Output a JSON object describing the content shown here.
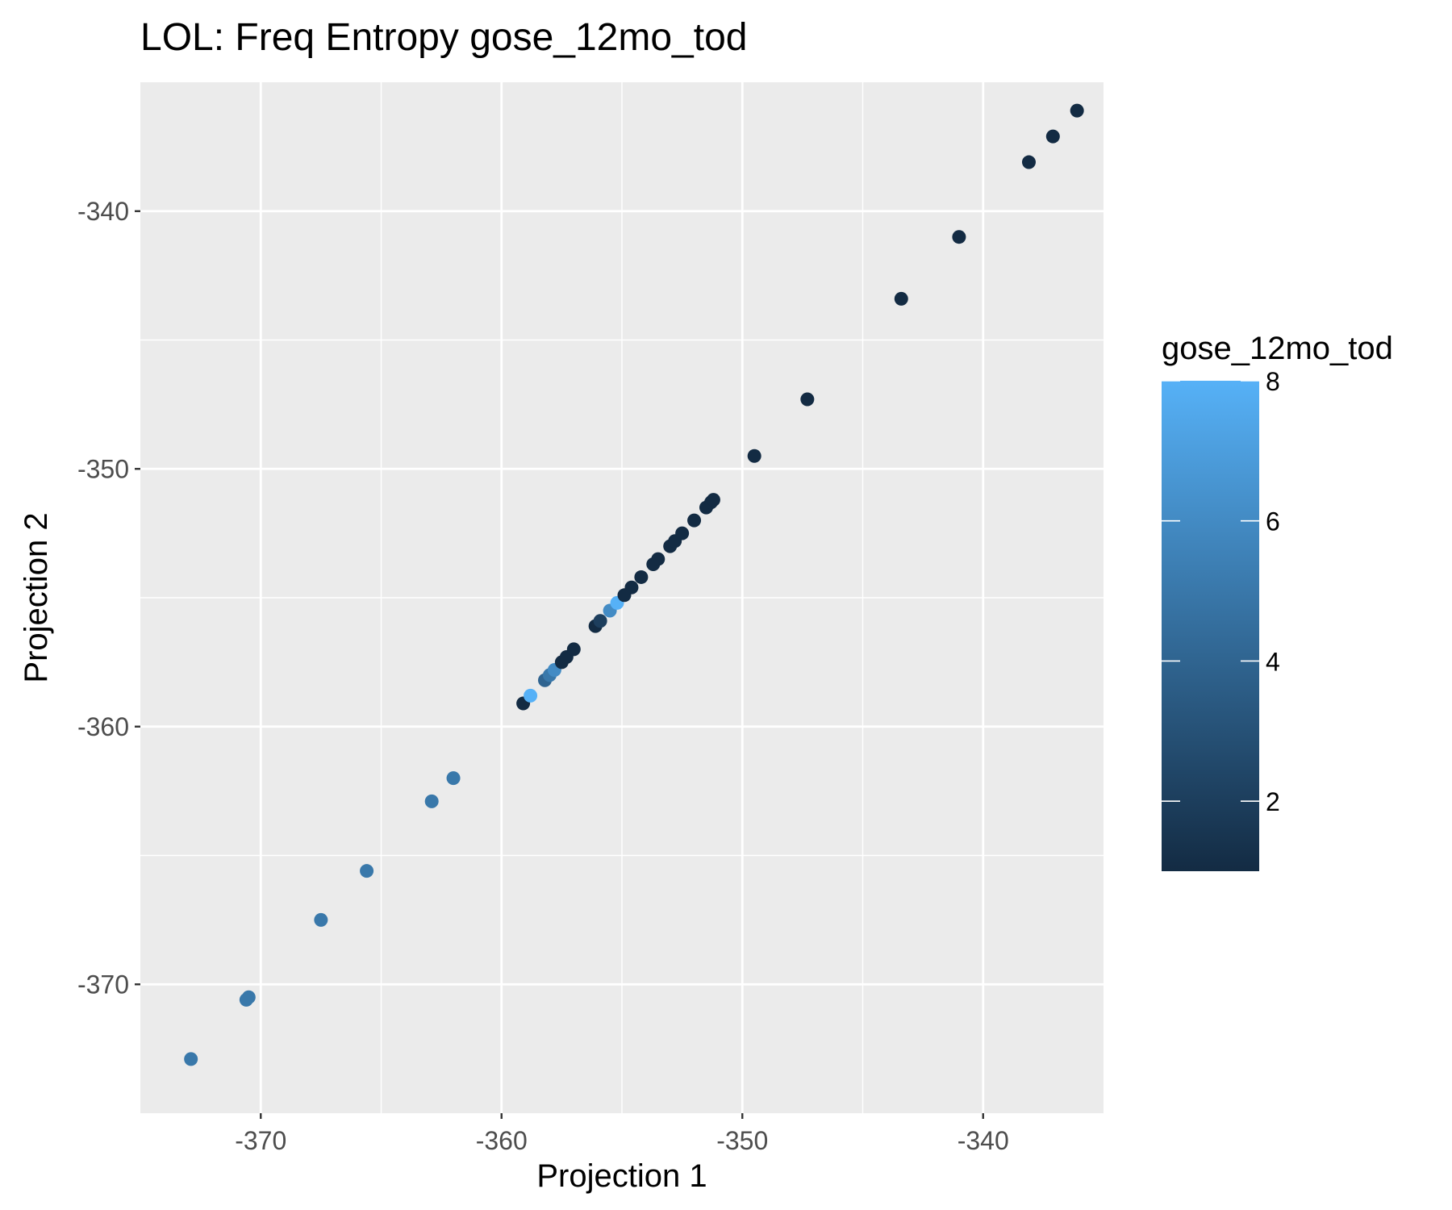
{
  "chart_data": {
    "type": "scatter",
    "title": "LOL: Freq Entropy gose_12mo_tod",
    "xlabel": "Projection 1",
    "ylabel": "Projection 2",
    "xlim": [
      -375,
      -335
    ],
    "ylim": [
      -375,
      -335
    ],
    "x_ticks": [
      -370,
      -360,
      -350,
      -340
    ],
    "y_ticks": [
      -370,
      -360,
      -350,
      -340
    ],
    "x_tick_labels": [
      "-370",
      "-360",
      "-350",
      "-340"
    ],
    "y_tick_labels": [
      "-370",
      "-360",
      "-350",
      "-340"
    ],
    "grid": true,
    "legend": {
      "title": "gose_12mo_tod",
      "placement": "right",
      "type": "colorbar",
      "range": [
        1,
        8
      ],
      "ticks": [
        2,
        4,
        6,
        8
      ],
      "tick_labels": [
        "2",
        "4",
        "6",
        "8"
      ],
      "low_color": "#132B43",
      "high_color": "#56B1F7"
    },
    "series": [
      {
        "points": [
          {
            "x": -372.9,
            "y": -372.9,
            "c": 5
          },
          {
            "x": -370.6,
            "y": -370.6,
            "c": 5
          },
          {
            "x": -370.5,
            "y": -370.5,
            "c": 5
          },
          {
            "x": -367.5,
            "y": -367.5,
            "c": 5
          },
          {
            "x": -365.6,
            "y": -365.6,
            "c": 5
          },
          {
            "x": -362.9,
            "y": -362.9,
            "c": 5
          },
          {
            "x": -362.0,
            "y": -362.0,
            "c": 5
          },
          {
            "x": -359.1,
            "y": -359.1,
            "c": 1
          },
          {
            "x": -358.8,
            "y": -358.8,
            "c": 8
          },
          {
            "x": -358.2,
            "y": -358.2,
            "c": 4
          },
          {
            "x": -358.0,
            "y": -358.0,
            "c": 5
          },
          {
            "x": -357.8,
            "y": -357.8,
            "c": 6
          },
          {
            "x": -357.5,
            "y": -357.5,
            "c": 1
          },
          {
            "x": -357.3,
            "y": -357.3,
            "c": 1
          },
          {
            "x": -357.0,
            "y": -357.0,
            "c": 1
          },
          {
            "x": -356.1,
            "y": -356.1,
            "c": 1
          },
          {
            "x": -355.9,
            "y": -355.9,
            "c": 2
          },
          {
            "x": -355.5,
            "y": -355.5,
            "c": 6
          },
          {
            "x": -355.2,
            "y": -355.2,
            "c": 8
          },
          {
            "x": -354.9,
            "y": -354.9,
            "c": 1
          },
          {
            "x": -354.6,
            "y": -354.6,
            "c": 1
          },
          {
            "x": -354.2,
            "y": -354.2,
            "c": 1
          },
          {
            "x": -353.7,
            "y": -353.7,
            "c": 1
          },
          {
            "x": -353.5,
            "y": -353.5,
            "c": 1
          },
          {
            "x": -353.0,
            "y": -353.0,
            "c": 1
          },
          {
            "x": -352.8,
            "y": -352.8,
            "c": 1
          },
          {
            "x": -352.5,
            "y": -352.5,
            "c": 1
          },
          {
            "x": -352.0,
            "y": -352.0,
            "c": 1
          },
          {
            "x": -351.5,
            "y": -351.5,
            "c": 1
          },
          {
            "x": -351.3,
            "y": -351.3,
            "c": 1
          },
          {
            "x": -351.2,
            "y": -351.2,
            "c": 1
          },
          {
            "x": -349.5,
            "y": -349.5,
            "c": 1
          },
          {
            "x": -347.3,
            "y": -347.3,
            "c": 1
          },
          {
            "x": -343.4,
            "y": -343.4,
            "c": 1
          },
          {
            "x": -341.0,
            "y": -341.0,
            "c": 1
          },
          {
            "x": -338.1,
            "y": -338.1,
            "c": 1
          },
          {
            "x": -337.1,
            "y": -337.1,
            "c": 1
          },
          {
            "x": -336.1,
            "y": -336.1,
            "c": 1
          }
        ]
      }
    ]
  }
}
